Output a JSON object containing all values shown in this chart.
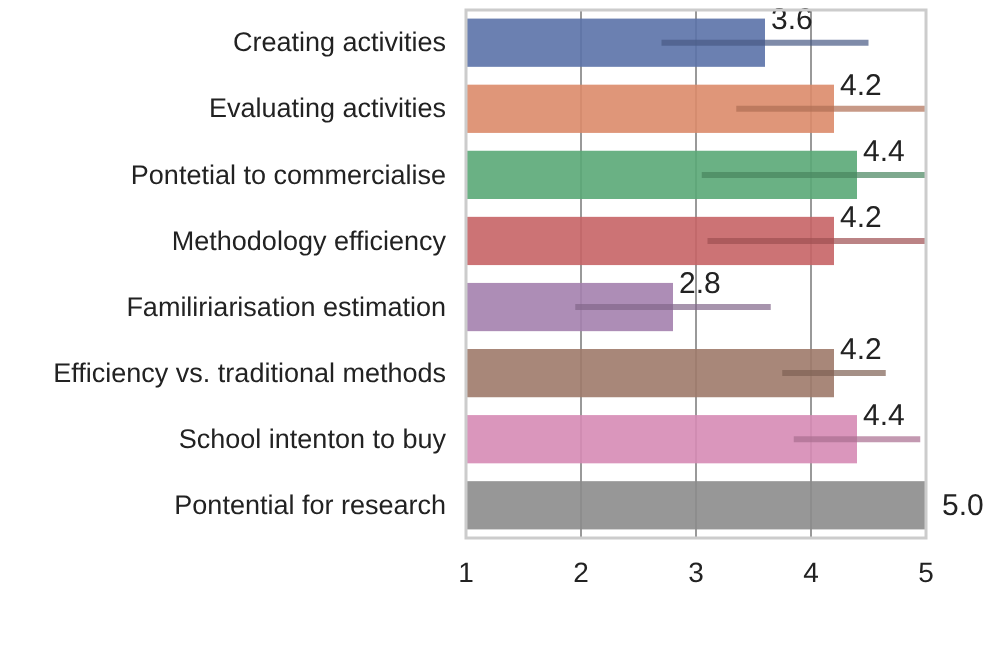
{
  "chart_data": {
    "type": "bar",
    "orientation": "horizontal",
    "categories": [
      "Creating activities",
      "Evaluating activities",
      "Pontetial to commercialise",
      "Methodology efficiency",
      "Familiriarisation estimation",
      "Efficiency vs. traditional methods",
      "School intenton to buy",
      "Pontential for research"
    ],
    "values": [
      3.6,
      4.2,
      4.4,
      4.2,
      2.8,
      4.2,
      4.4,
      5.0
    ],
    "value_labels": [
      "3.6",
      "4.2",
      "4.4",
      "4.2",
      "2.8",
      "4.2",
      "4.4",
      "5.0"
    ],
    "errors": [
      [
        2.7,
        4.5
      ],
      [
        3.35,
        5
      ],
      [
        3.05,
        5
      ],
      [
        3.1,
        5
      ],
      [
        1.95,
        3.65
      ],
      [
        3.75,
        4.65
      ],
      [
        3.85,
        4.95
      ],
      null
    ],
    "colors": [
      "#5b72a8",
      "#dc8b6a",
      "#5aa877",
      "#c76466",
      "#a481ae",
      "#9f7a6a",
      "#d68bb5",
      "#8c8c8c"
    ],
    "xlim": [
      1,
      5
    ],
    "xticks": [
      1,
      2,
      3,
      4,
      5
    ],
    "grid": "x"
  }
}
